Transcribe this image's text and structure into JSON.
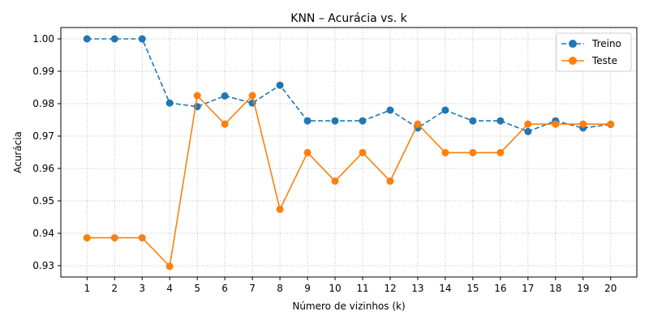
{
  "chart_data": {
    "type": "line",
    "title": "KNN – Acurácia vs. k",
    "xlabel": "Número de vizinhos (k)",
    "ylabel": "Acurácia",
    "x": [
      1,
      2,
      3,
      4,
      5,
      6,
      7,
      8,
      9,
      10,
      11,
      12,
      13,
      14,
      15,
      16,
      17,
      18,
      19,
      20
    ],
    "xticks": [
      "1",
      "2",
      "3",
      "4",
      "5",
      "6",
      "7",
      "8",
      "9",
      "10",
      "11",
      "12",
      "13",
      "14",
      "15",
      "16",
      "17",
      "18",
      "19",
      "20"
    ],
    "yticks": [
      "0.93",
      "0.94",
      "0.95",
      "0.96",
      "0.97",
      "0.98",
      "0.99",
      "1.00"
    ],
    "ylim": [
      0.9265,
      1.0035
    ],
    "grid": true,
    "legend_position": "top-right",
    "series": [
      {
        "name": "Treino",
        "color": "#1f77b4",
        "line_style": "dashed",
        "values": [
          1.0,
          1.0,
          1.0,
          0.9802,
          0.9791,
          0.9824,
          0.9802,
          0.9857,
          0.9747,
          0.9747,
          0.9747,
          0.978,
          0.9725,
          0.978,
          0.9747,
          0.9747,
          0.9714,
          0.9747,
          0.9725,
          0.9736
        ]
      },
      {
        "name": "Teste",
        "color": "#ff7f0e",
        "line_style": "solid",
        "values": [
          0.9386,
          0.9386,
          0.9386,
          0.9298,
          0.9825,
          0.9737,
          0.9825,
          0.9474,
          0.9649,
          0.9561,
          0.9649,
          0.9561,
          0.9737,
          0.9649,
          0.9649,
          0.9649,
          0.9737,
          0.9737,
          0.9737,
          0.9737
        ]
      }
    ]
  }
}
